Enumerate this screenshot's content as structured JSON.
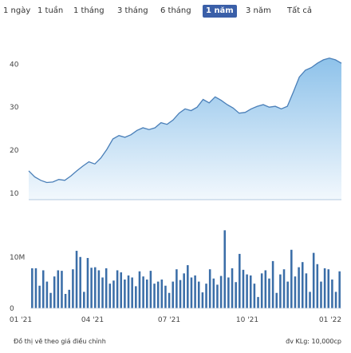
{
  "tabs": [
    {
      "label": "1 ngày",
      "active": false
    },
    {
      "label": "1 tuần",
      "active": false
    },
    {
      "label": "1 tháng",
      "active": false
    },
    {
      "label": "3 tháng",
      "active": false
    },
    {
      "label": "6 tháng",
      "active": false
    },
    {
      "label": "1 năm",
      "active": true
    },
    {
      "label": "3 năm",
      "active": false
    },
    {
      "label": "Tất cả",
      "active": false
    }
  ],
  "footnote_left": "Đồ thị vẽ theo giá điều chỉnh",
  "footnote_right": "đv KLg: 10,000cp",
  "colors": {
    "area_fill_top": "#8ec2ea",
    "area_fill_bottom": "#f2f8fd",
    "line": "#4a7fb8",
    "bar": "#3b6ea8",
    "active_tab": "#3a5fa8"
  },
  "chart_data": [
    {
      "type": "area",
      "title": "",
      "x_ticks": [
        "01 '21",
        "04 '21",
        "07 '21",
        "10 '21",
        "01 '22"
      ],
      "y_ticks": [
        10,
        20,
        30,
        40
      ],
      "ylim": [
        8.5,
        46
      ],
      "x": [
        0,
        3,
        6,
        9,
        12,
        15,
        18,
        21,
        24,
        27,
        30,
        33,
        36,
        39,
        42,
        45,
        48,
        51,
        54,
        57,
        60,
        63,
        66,
        69,
        72,
        75,
        78,
        81,
        84,
        87,
        90,
        93,
        96,
        99,
        102,
        105,
        108,
        111,
        114,
        117,
        120,
        123,
        126,
        129,
        132,
        135,
        138,
        141,
        144,
        147,
        150,
        153,
        156
      ],
      "values": [
        15.2,
        13.8,
        13.0,
        12.5,
        12.6,
        13.2,
        13.0,
        14.0,
        15.2,
        16.3,
        17.3,
        16.8,
        18.2,
        20.2,
        22.6,
        23.4,
        23.0,
        23.6,
        24.6,
        25.2,
        24.8,
        25.2,
        26.4,
        26.0,
        27.0,
        28.6,
        29.6,
        29.2,
        30.0,
        31.8,
        31.0,
        32.4,
        31.6,
        30.6,
        29.8,
        28.6,
        28.8,
        29.6,
        30.2,
        30.6,
        30.0,
        30.2,
        29.6,
        30.2,
        33.5,
        37.0,
        38.6,
        39.2,
        40.2,
        41.0,
        41.4,
        41.0,
        40.2
      ],
      "grid": false,
      "legend": "none"
    },
    {
      "type": "bar",
      "title": "",
      "y_ticks_labels": [
        "0",
        "10M"
      ],
      "y_ticks_values": [
        0,
        10
      ],
      "ylim": [
        0,
        16.5
      ],
      "values": [
        7.8,
        7.8,
        4.4,
        7.4,
        5.2,
        3.0,
        6.2,
        7.4,
        7.3,
        2.8,
        3.6,
        7.6,
        11.2,
        10.0,
        3.2,
        9.8,
        7.9,
        8.0,
        7.4,
        6.0,
        7.8,
        4.8,
        5.4,
        7.4,
        7.0,
        5.6,
        6.4,
        6.0,
        4.3,
        7.2,
        6.2,
        5.6,
        7.3,
        4.8,
        5.2,
        5.6,
        4.4,
        3.0,
        5.2,
        7.6,
        5.5,
        6.8,
        8.4,
        6.0,
        6.4,
        5.2,
        3.1,
        4.8,
        7.6,
        5.8,
        4.6,
        6.3,
        15.2,
        6.0,
        7.8,
        5.1,
        10.6,
        7.5,
        6.6,
        6.4,
        4.8,
        2.2,
        6.8,
        7.4,
        5.8,
        9.2,
        3.0,
        6.6,
        7.6,
        5.2,
        11.4,
        6.2,
        8.0,
        9.0,
        6.8,
        3.2,
        10.8,
        8.6,
        5.2,
        7.8,
        7.6,
        5.6,
        3.2,
        7.2
      ],
      "grid": false,
      "legend": "none"
    }
  ]
}
